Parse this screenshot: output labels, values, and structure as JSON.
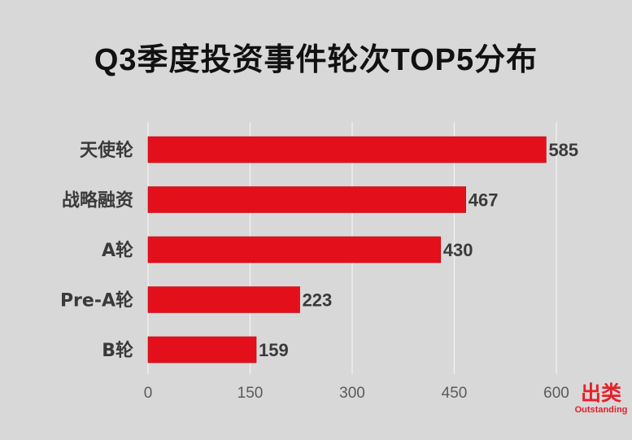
{
  "chart_data": {
    "type": "bar",
    "orientation": "horizontal",
    "title": "Q3季度投资事件轮次TOP5分布",
    "xlabel": "",
    "ylabel": "",
    "categories": [
      "天使轮",
      "战略融资",
      "A轮",
      "Pre-A轮",
      "B轮"
    ],
    "values": [
      585,
      467,
      430,
      223,
      159
    ],
    "xlim": [
      0,
      600
    ],
    "xticks": [
      0,
      150,
      300,
      450,
      600
    ],
    "grid": true,
    "legend": "none",
    "data_labels": true,
    "bar_color": "#e3101c",
    "grid_color": "#f2f2f2"
  },
  "brand": {
    "logo_cn": "出类",
    "logo_en": "Outstanding",
    "color": "#e8202a"
  }
}
